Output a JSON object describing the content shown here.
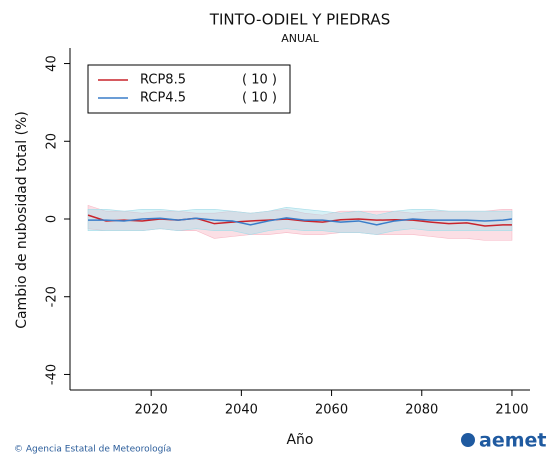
{
  "chart_data": {
    "type": "line",
    "title": "TINTO-ODIEL Y PIEDRAS",
    "subtitle": "ANUAL",
    "ylabel": "Cambio de nubosidad total (%)",
    "xlabel": "Año",
    "x": [
      2006,
      2010,
      2014,
      2018,
      2022,
      2026,
      2030,
      2034,
      2038,
      2042,
      2046,
      2050,
      2054,
      2058,
      2062,
      2066,
      2070,
      2074,
      2078,
      2082,
      2086,
      2090,
      2094,
      2098,
      2100
    ],
    "series": [
      {
        "name": "RCP8.5",
        "legend_note": "( 10 )",
        "color": "#c8232c",
        "band_color": "#f7b9c6",
        "values": [
          1,
          -0.5,
          -0.3,
          -0.5,
          0,
          -0.3,
          0.2,
          -1.2,
          -0.8,
          -0.5,
          -0.3,
          0,
          -0.5,
          -0.8,
          -0.2,
          0,
          -0.3,
          -0.2,
          -0.3,
          -0.8,
          -1.2,
          -1,
          -1.8,
          -1.5,
          -1.5
        ],
        "range_high": [
          3.5,
          2,
          2,
          1.5,
          2,
          2,
          1.5,
          1.5,
          2,
          1.5,
          2,
          2.5,
          1.5,
          1,
          2,
          2,
          2,
          2,
          1.5,
          2,
          2,
          2,
          2,
          2.5,
          2.5
        ],
        "range_low": [
          -2.5,
          -3,
          -3,
          -3,
          -2.5,
          -3,
          -3,
          -5,
          -4.5,
          -4,
          -4,
          -3.5,
          -4,
          -4,
          -3.5,
          -3.5,
          -4,
          -4,
          -4,
          -4.5,
          -5,
          -5,
          -5.5,
          -5.5,
          -5.5
        ]
      },
      {
        "name": "RCP4.5",
        "legend_note": "( 10 )",
        "color": "#3a7dc9",
        "band_color": "#a6dde9",
        "values": [
          -0.3,
          -0.3,
          -0.5,
          0,
          0.2,
          -0.3,
          0.2,
          -0.3,
          -0.5,
          -1.5,
          -0.5,
          0.3,
          -0.3,
          -0.3,
          -0.8,
          -0.5,
          -1.5,
          -0.5,
          0,
          -0.3,
          -0.3,
          -0.3,
          -0.5,
          -0.3,
          0
        ],
        "range_high": [
          2.5,
          2.5,
          2,
          2.5,
          2.5,
          2,
          2.5,
          2.5,
          2,
          1.5,
          2,
          3,
          2.5,
          2,
          1.5,
          2,
          1,
          2,
          2.5,
          2.5,
          2,
          2,
          2,
          2,
          2
        ],
        "range_low": [
          -3,
          -3,
          -3,
          -3,
          -2.5,
          -3,
          -2.5,
          -3,
          -3,
          -4,
          -3,
          -2.5,
          -3,
          -3,
          -3.5,
          -3.5,
          -4,
          -3,
          -2.5,
          -3,
          -3,
          -3,
          -3,
          -3,
          -3
        ]
      }
    ],
    "xlim": [
      2002,
      2104
    ],
    "xticks": [
      2020,
      2040,
      2060,
      2080,
      2100
    ],
    "ylim": [
      -44,
      44
    ],
    "yticks": [
      -40,
      -20,
      0,
      20,
      40
    ],
    "legend": "upper left",
    "grid": false
  },
  "footer": {
    "credit": "© Agencia Estatal de Meteorología",
    "logo": "aemet"
  }
}
